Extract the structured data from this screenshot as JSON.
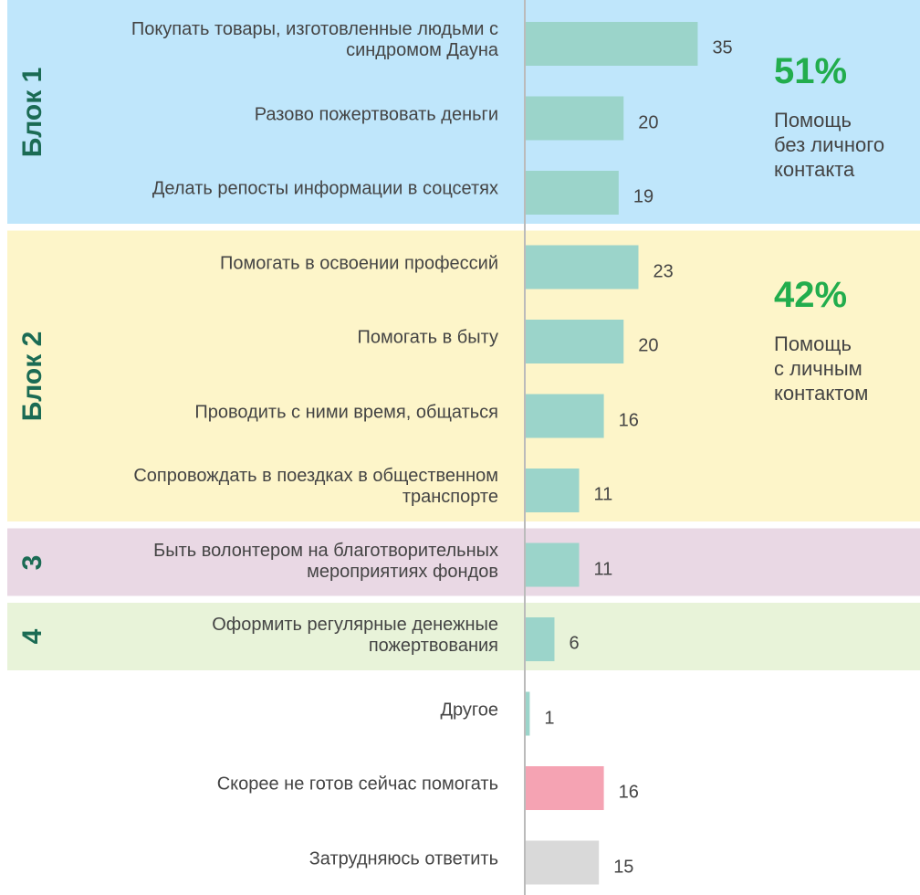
{
  "chart_data": {
    "type": "bar",
    "orientation": "horizontal",
    "categories": [
      "Покупать товары, изготовленные людьми с\nсиндромом Дауна",
      "Разово пожертвовать деньги",
      "Делать репосты информации в соцсетях",
      "Помогать в освоении профессий",
      "Помогать в быту",
      "Проводить с ними время, общаться",
      "Сопровождать в поездках в общественном\nтранспорте",
      "Быть волонтером на благотворительных\nмероприятиях фондов",
      "Оформить регулярные денежные\nпожертвования",
      "Другое",
      "Скорее не готов сейчас помогать",
      "Затрудняюсь ответить"
    ],
    "values": [
      35,
      20,
      19,
      23,
      20,
      16,
      11,
      11,
      6,
      1,
      16,
      15
    ],
    "colors": [
      "#9bd4ca",
      "#9bd4ca",
      "#9bd4ca",
      "#9bd4ca",
      "#9bd4ca",
      "#9bd4ca",
      "#9bd4ca",
      "#9bd4ca",
      "#9bd4ca",
      "#9bd4ca",
      "#f5a3b3",
      "#d9d9d9"
    ],
    "xlim": [
      0,
      80
    ],
    "blocks": [
      {
        "label": "Блок 1",
        "color": "#bfe6fb",
        "rows": [
          0,
          2
        ],
        "share": "51%",
        "note": "Помощь\nбез личного\nконтакта"
      },
      {
        "label": "Блок 2",
        "color": "#fdf5c9",
        "rows": [
          3,
          6
        ],
        "share": "42%",
        "note": "Помощь\nс личным\nконтактом"
      },
      {
        "label": "3",
        "color": "#e9d8e4",
        "rows": [
          7,
          7
        ]
      },
      {
        "label": "4",
        "color": "#e8f3d9",
        "rows": [
          8,
          8
        ]
      }
    ]
  }
}
